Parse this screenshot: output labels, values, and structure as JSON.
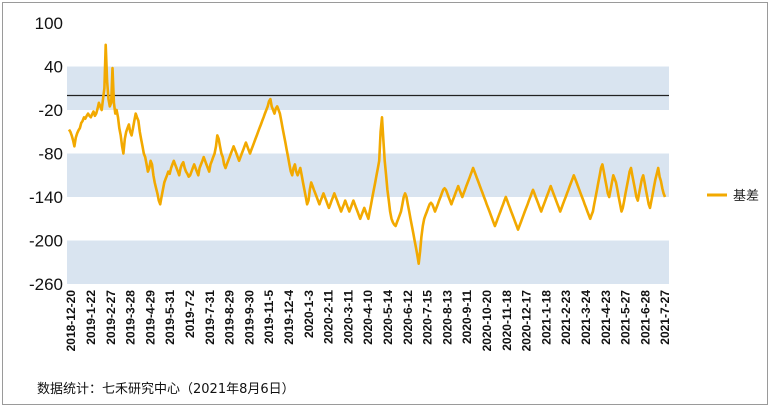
{
  "source_note": "数据统计：七禾研究中心（2021年8月6日）",
  "colors": {
    "series": "#f2a900",
    "band": "#d9e4f0",
    "zero_line": "#222222"
  },
  "chart_data": {
    "type": "line",
    "title": "",
    "xlabel": "",
    "ylabel": "",
    "ylim": [
      -260,
      100
    ],
    "y_ticks": [
      100,
      40,
      -20,
      -80,
      -140,
      -200,
      -260
    ],
    "shaded_bands": [
      [
        -20,
        40
      ],
      [
        -140,
        -80
      ],
      [
        -260,
        -200
      ]
    ],
    "reference_line": 0,
    "legend_position": "right",
    "grid": false,
    "x_tick_labels": [
      "2018-12-20",
      "2019-1-22",
      "2019-2-27",
      "2019-3-28",
      "2019-4-29",
      "2019-5-31",
      "2019-7-2",
      "2019-7-31",
      "2019-8-29",
      "2019-9-30",
      "2019-11-5",
      "2019-12-4",
      "2020-1-3",
      "2020-2-11",
      "2020-3-11",
      "2020-4-10",
      "2020-5-14",
      "2020-6-12",
      "2020-7-15",
      "2020-8-13",
      "2020-9-11",
      "2020-10-20",
      "2020-11-18",
      "2020-12-17",
      "2021-1-18",
      "2021-2-23",
      "2021-3-24",
      "2021-4-23",
      "2021-5-27",
      "2021-6-28",
      "2021-7-27"
    ],
    "series": [
      {
        "name": "基差",
        "values": [
          -47,
          -50,
          -55,
          -62,
          -70,
          -58,
          -52,
          -48,
          -45,
          -38,
          -35,
          -30,
          -32,
          -28,
          -25,
          -28,
          -30,
          -26,
          -22,
          -28,
          -25,
          -18,
          -10,
          -15,
          -20,
          -5,
          10,
          70,
          20,
          -5,
          -15,
          -10,
          38,
          -10,
          -25,
          -20,
          -30,
          -45,
          -55,
          -70,
          -80,
          -60,
          -50,
          -45,
          -40,
          -50,
          -55,
          -45,
          -35,
          -25,
          -30,
          -35,
          -50,
          -60,
          -70,
          -80,
          -85,
          -95,
          -105,
          -100,
          -90,
          -95,
          -110,
          -120,
          -128,
          -135,
          -145,
          -150,
          -140,
          -130,
          -120,
          -115,
          -110,
          -105,
          -108,
          -100,
          -95,
          -90,
          -95,
          -100,
          -105,
          -110,
          -100,
          -95,
          -92,
          -100,
          -105,
          -108,
          -112,
          -110,
          -105,
          -100,
          -95,
          -100,
          -105,
          -110,
          -100,
          -95,
          -90,
          -85,
          -90,
          -95,
          -100,
          -105,
          -95,
          -90,
          -85,
          -80,
          -70,
          -55,
          -60,
          -70,
          -80,
          -85,
          -95,
          -100,
          -95,
          -90,
          -85,
          -80,
          -75,
          -70,
          -75,
          -80,
          -85,
          -90,
          -85,
          -80,
          -75,
          -70,
          -65,
          -70,
          -75,
          -80,
          -75,
          -70,
          -65,
          -60,
          -55,
          -50,
          -45,
          -40,
          -35,
          -30,
          -25,
          -20,
          -15,
          -8,
          -5,
          -15,
          -20,
          -25,
          -18,
          -15,
          -20,
          -25,
          -35,
          -45,
          -55,
          -65,
          -75,
          -85,
          -95,
          -105,
          -110,
          -100,
          -95,
          -105,
          -110,
          -105,
          -100,
          -110,
          -120,
          -130,
          -140,
          -150,
          -145,
          -130,
          -120,
          -125,
          -130,
          -135,
          -140,
          -145,
          -150,
          -145,
          -140,
          -135,
          -140,
          -145,
          -150,
          -155,
          -150,
          -145,
          -140,
          -135,
          -140,
          -145,
          -150,
          -155,
          -160,
          -155,
          -150,
          -145,
          -150,
          -155,
          -160,
          -155,
          -150,
          -145,
          -150,
          -155,
          -160,
          -165,
          -170,
          -165,
          -160,
          -155,
          -160,
          -165,
          -170,
          -160,
          -150,
          -140,
          -130,
          -120,
          -110,
          -100,
          -90,
          -50,
          -30,
          -60,
          -90,
          -110,
          -130,
          -145,
          -160,
          -170,
          -175,
          -178,
          -180,
          -175,
          -170,
          -165,
          -160,
          -150,
          -140,
          -135,
          -140,
          -150,
          -160,
          -170,
          -180,
          -190,
          -200,
          -210,
          -220,
          -232,
          -215,
          -195,
          -180,
          -170,
          -165,
          -160,
          -155,
          -150,
          -148,
          -150,
          -155,
          -160,
          -155,
          -150,
          -145,
          -140,
          -135,
          -130,
          -128,
          -130,
          -135,
          -140,
          -145,
          -150,
          -145,
          -140,
          -135,
          -130,
          -125,
          -130,
          -135,
          -140,
          -135,
          -130,
          -125,
          -120,
          -115,
          -110,
          -105,
          -100,
          -105,
          -110,
          -115,
          -120,
          -125,
          -130,
          -135,
          -140,
          -145,
          -150,
          -155,
          -160,
          -165,
          -170,
          -175,
          -180,
          -175,
          -170,
          -165,
          -160,
          -155,
          -150,
          -145,
          -140,
          -145,
          -150,
          -155,
          -160,
          -165,
          -170,
          -175,
          -180,
          -185,
          -180,
          -175,
          -170,
          -165,
          -160,
          -155,
          -150,
          -145,
          -140,
          -135,
          -130,
          -135,
          -140,
          -145,
          -150,
          -155,
          -160,
          -155,
          -150,
          -145,
          -140,
          -135,
          -130,
          -125,
          -130,
          -135,
          -140,
          -145,
          -150,
          -155,
          -160,
          -155,
          -150,
          -145,
          -140,
          -135,
          -130,
          -125,
          -120,
          -115,
          -110,
          -115,
          -120,
          -125,
          -130,
          -135,
          -140,
          -145,
          -150,
          -155,
          -160,
          -165,
          -170,
          -165,
          -160,
          -150,
          -140,
          -130,
          -120,
          -110,
          -100,
          -95,
          -105,
          -115,
          -125,
          -135,
          -140,
          -130,
          -120,
          -110,
          -115,
          -120,
          -130,
          -140,
          -150,
          -160,
          -155,
          -145,
          -135,
          -125,
          -115,
          -105,
          -100,
          -110,
          -120,
          -130,
          -140,
          -145,
          -135,
          -125,
          -115,
          -110,
          -120,
          -130,
          -140,
          -150,
          -155,
          -145,
          -135,
          -125,
          -115,
          -108,
          -100,
          -112,
          -118,
          -128,
          -135,
          -140
        ]
      }
    ]
  }
}
